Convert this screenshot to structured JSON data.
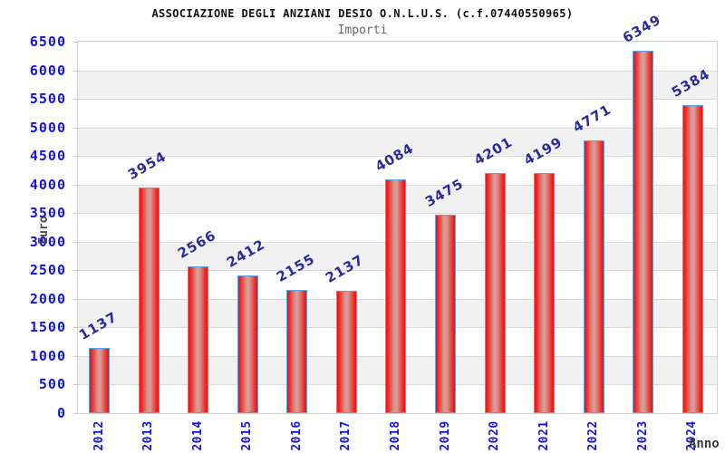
{
  "title": "ASSOCIAZIONE DEGLI ANZIANI DESIO O.N.L.U.S. (c.f.07440550965)",
  "subtitle": "Importi",
  "chart_data": {
    "type": "bar",
    "title": "ASSOCIAZIONE DEGLI ANZIANI DESIO O.N.L.U.S. (c.f.07440550965)",
    "subtitle": "Importi",
    "categories": [
      "2012",
      "2013",
      "2014",
      "2015",
      "2016",
      "2017",
      "2018",
      "2019",
      "2020",
      "2021",
      "2022",
      "2023",
      "2024"
    ],
    "values": [
      1137,
      3954,
      2566,
      2412,
      2155,
      2137,
      4084,
      3475,
      4201,
      4199,
      4771,
      6349,
      5384
    ],
    "xlabel": "Anno",
    "ylabel": "Euro",
    "ylim": [
      0,
      6500
    ],
    "ytick_step": 500,
    "grid": true,
    "legend_position": "none",
    "value_labels_rotated": true
  },
  "colors": {
    "tick_label": "#1414dd",
    "value_label": "#2b2b99",
    "bar_red_edge": "#f01010",
    "bar_red_center": "#d6a09c",
    "bar_border_blue": "#5ea3e6",
    "band_gray": "#f1f1f1",
    "gridline": "#dcdcdc",
    "title_text": "#111111",
    "subtitle_text": "#666666",
    "axis_title_text": "#3a3a3a"
  }
}
